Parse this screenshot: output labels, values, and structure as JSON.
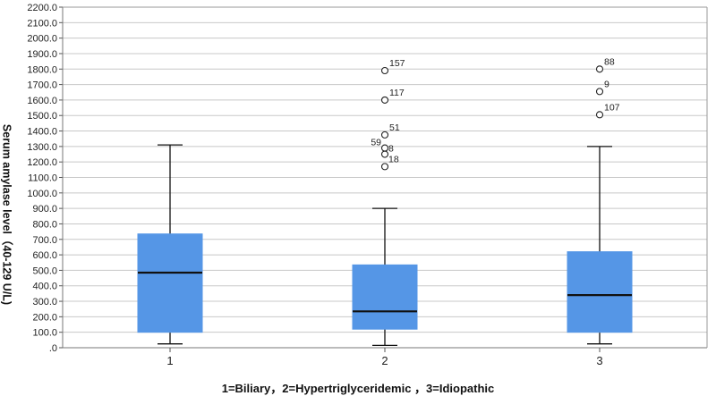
{
  "chart_data": {
    "type": "boxplot",
    "title": "",
    "xlabel": "1=Biliary，2=Hypertriglyceridemic ，3=Idiopathic",
    "ylabel": "Serum amylase level（40-129 U/L)",
    "ylim": [
      0,
      2200
    ],
    "y_ticks": [
      ".0",
      "100.0",
      "200.0",
      "300.0",
      "400.0",
      "500.0",
      "600.0",
      "700.0",
      "800.0",
      "900.0",
      "1000.0",
      "1100.0",
      "1200.0",
      "1300.0",
      "1400.0",
      "1500.0",
      "1600.0",
      "1700.0",
      "1800.0",
      "1900.0",
      "2000.0",
      "2100.0",
      "2200.0"
    ],
    "grid": true,
    "box_color": "#5596e6",
    "groups": [
      {
        "category": "1",
        "min": 25,
        "q1": 100,
        "median": 485,
        "q3": 735,
        "max": 1310,
        "outliers": []
      },
      {
        "category": "2",
        "min": 15,
        "q1": 120,
        "median": 235,
        "q3": 535,
        "max": 900,
        "outliers": [
          {
            "value": 1790,
            "label": "157"
          },
          {
            "value": 1600,
            "label": "117"
          },
          {
            "value": 1375,
            "label": "51"
          },
          {
            "value": 1290,
            "label": "59"
          },
          {
            "value": 1250,
            "label": "8"
          },
          {
            "value": 1170,
            "label": "18"
          }
        ]
      },
      {
        "category": "3",
        "min": 25,
        "q1": 100,
        "median": 340,
        "q3": 620,
        "max": 1300,
        "outliers": [
          {
            "value": 1800,
            "label": "88"
          },
          {
            "value": 1655,
            "label": "9"
          },
          {
            "value": 1505,
            "label": "107"
          }
        ]
      }
    ]
  }
}
